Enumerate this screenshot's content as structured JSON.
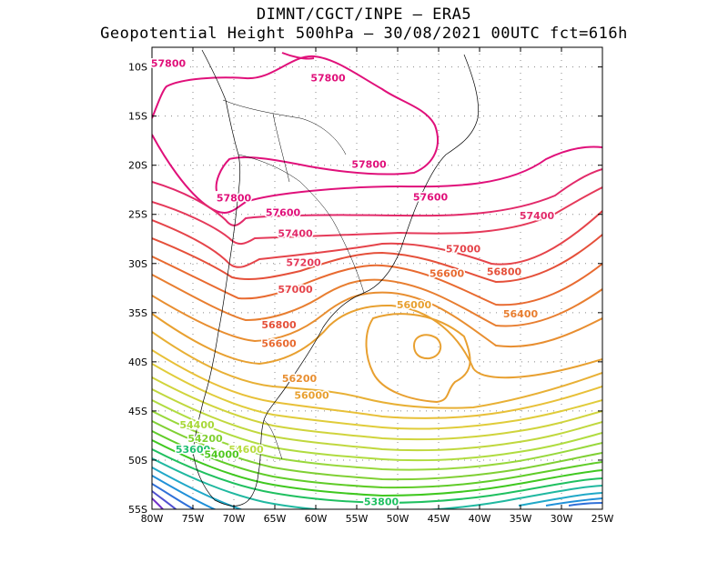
{
  "header": {
    "line1": "DIMNT/CGCT/INPE —  ERA5",
    "line2": "Geopotential Height 500hPa —  30/08/2021 00UTC fct=616h"
  },
  "map": {
    "lon_range": [
      -80,
      -25
    ],
    "lat_range": [
      -55,
      -8
    ],
    "y_ticks": [
      "10S",
      "15S",
      "20S",
      "25S",
      "30S",
      "35S",
      "40S",
      "45S",
      "50S",
      "55S"
    ],
    "x_ticks": [
      "80W",
      "75W",
      "70W",
      "65W",
      "60W",
      "55W",
      "50W",
      "45W",
      "40W",
      "35W",
      "30W",
      "25W"
    ],
    "grid": true,
    "contour_interval": 200,
    "contour_labels": [
      {
        "text": "57800",
        "color": "#e0107a",
        "lon": -78,
        "lat": -9.6
      },
      {
        "text": "57800",
        "color": "#e0107a",
        "lon": -58.5,
        "lat": -11.1
      },
      {
        "text": "57800",
        "color": "#e0107a",
        "lon": -53.5,
        "lat": -19.9
      },
      {
        "text": "57800",
        "color": "#e0107a",
        "lon": -70,
        "lat": -23.3
      },
      {
        "text": "57600",
        "color": "#e0107a",
        "lon": -64,
        "lat": -24.8
      },
      {
        "text": "57600",
        "color": "#e0107a",
        "lon": -46,
        "lat": -23.2
      },
      {
        "text": "57400",
        "color": "#e22a6a",
        "lon": -62.5,
        "lat": -26.9
      },
      {
        "text": "57400",
        "color": "#e22a6a",
        "lon": -33,
        "lat": -25.1
      },
      {
        "text": "57200",
        "color": "#e53a5a",
        "lon": -61.5,
        "lat": -29.9
      },
      {
        "text": "57000",
        "color": "#e5444a",
        "lon": -62.5,
        "lat": -32.6
      },
      {
        "text": "57000",
        "color": "#e5444a",
        "lon": -42,
        "lat": -28.5
      },
      {
        "text": "56800",
        "color": "#e5503a",
        "lon": -64.5,
        "lat": -36.2
      },
      {
        "text": "56800",
        "color": "#e5503a",
        "lon": -37,
        "lat": -30.8
      },
      {
        "text": "56600",
        "color": "#e86a30",
        "lon": -44,
        "lat": -31.0
      },
      {
        "text": "56600",
        "color": "#e86a30",
        "lon": -64.5,
        "lat": -38.1
      },
      {
        "text": "56400",
        "color": "#e87e30",
        "lon": -35,
        "lat": -35.1
      },
      {
        "text": "56200",
        "color": "#e88e30",
        "lon": -62,
        "lat": -41.7
      },
      {
        "text": "56000",
        "color": "#e8a030",
        "lon": -48,
        "lat": -34.2
      },
      {
        "text": "56000",
        "color": "#e8a030",
        "lon": -60.5,
        "lat": -43.4
      },
      {
        "text": "54400",
        "color": "#a8d838",
        "lon": -74.5,
        "lat": -46.4
      },
      {
        "text": "54200",
        "color": "#80d030",
        "lon": -73.5,
        "lat": -47.8
      },
      {
        "text": "53600",
        "color": "#20c070",
        "lon": -75,
        "lat": -48.9
      },
      {
        "text": "54600",
        "color": "#b8dc40",
        "lon": -68.5,
        "lat": -48.9
      },
      {
        "text": "54000",
        "color": "#50c820",
        "lon": -71.5,
        "lat": -49.4
      },
      {
        "text": "53800",
        "color": "#20c060",
        "lon": -52,
        "lat": -54.2
      }
    ]
  }
}
